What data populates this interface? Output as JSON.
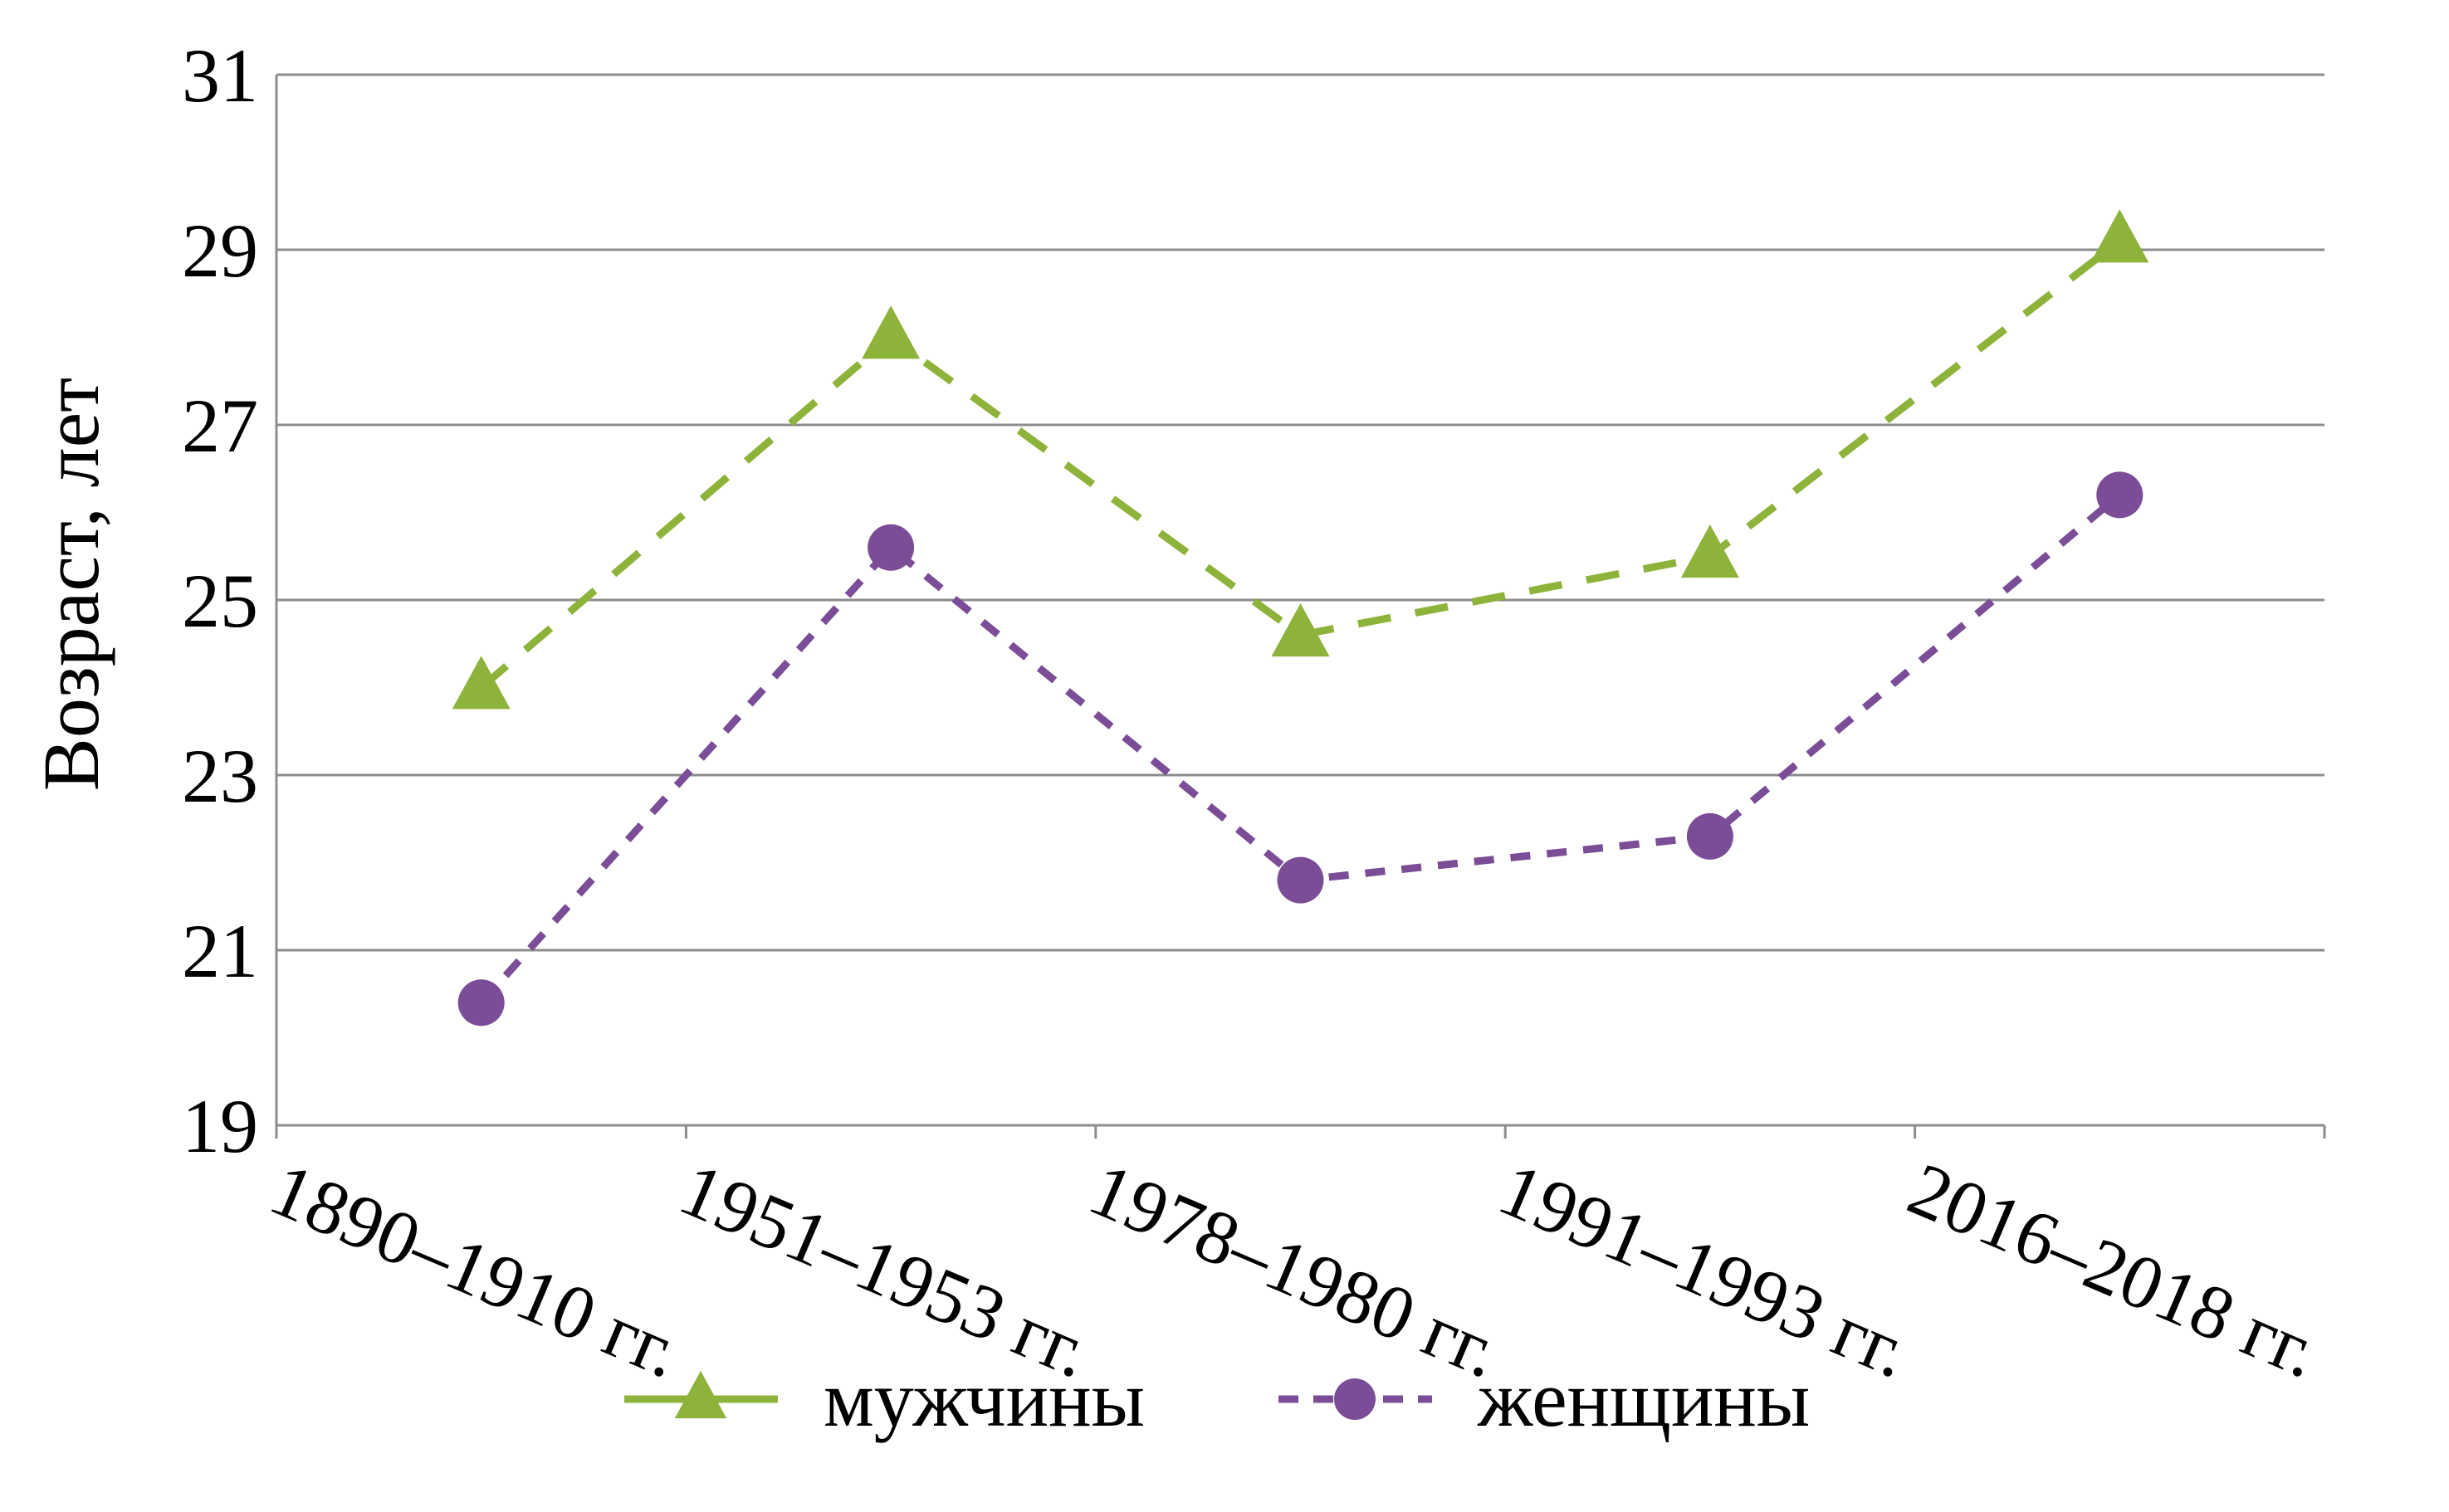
{
  "chart_data": {
    "type": "line",
    "categories": [
      "1890–1910 гг.",
      "1951–1953 гг.",
      "1978–1980 гг.",
      "1991–1993 гг.",
      "2016–2018 гг."
    ],
    "ylabel": "Возраст, лет",
    "xlabel": "",
    "ylim": [
      19,
      31
    ],
    "yticks": [
      19,
      21,
      23,
      25,
      27,
      29,
      31
    ],
    "grid": true,
    "legend_position": "bottom",
    "series": [
      {
        "name": "мужчины",
        "values": [
          24.0,
          28.0,
          24.6,
          25.5,
          29.1
        ],
        "color": "#8DB33A",
        "marker": "triangle",
        "line_style": "dashed"
      },
      {
        "name": "женщины",
        "values": [
          20.4,
          25.6,
          21.8,
          22.3,
          26.2
        ],
        "color": "#7B4D96",
        "marker": "circle",
        "line_style": "dashed"
      }
    ]
  }
}
